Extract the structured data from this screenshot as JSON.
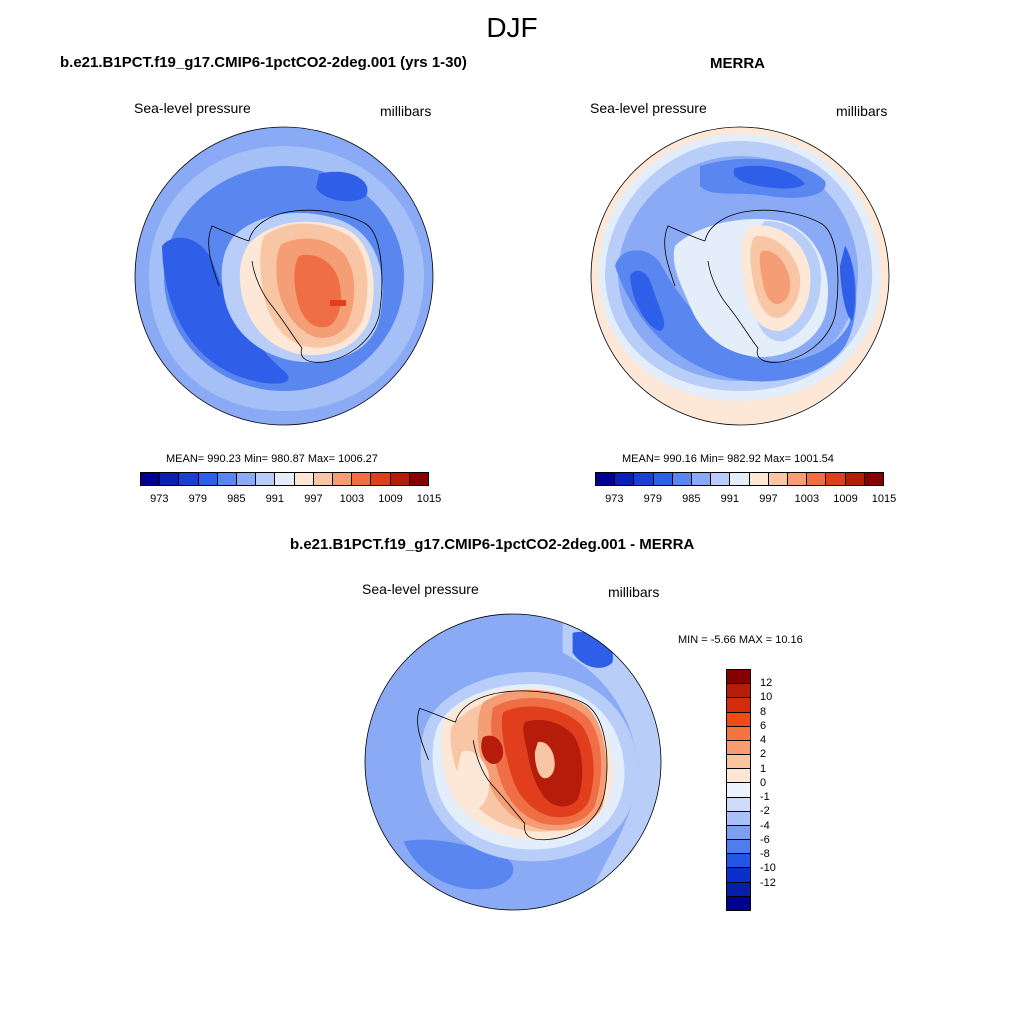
{
  "title": "DJF",
  "panels": [
    {
      "title": "b.e21.B1PCT.f19_g17.CMIP6-1pctCO2-2deg.001 (yrs 1-30)",
      "left_label": "Sea-level pressure",
      "right_label": "millibars",
      "stats": "MEAN= 990.23  Min= 980.87  Max= 1006.27"
    },
    {
      "title": "MERRA",
      "left_label": "Sea-level pressure",
      "right_label": "millibars",
      "stats": "MEAN= 990.16  Min= 982.92  Max= 1001.54"
    },
    {
      "title": "b.e21.B1PCT.f19_g17.CMIP6-1pctCO2-2deg.001 - MERRA",
      "left_label": "Sea-level pressure",
      "right_label": "millibars",
      "stats": "MIN =  -5.66 MAX =  10.16"
    }
  ],
  "colorbar_abs": {
    "ticks": [
      "973",
      "979",
      "985",
      "991",
      "997",
      "1003",
      "1009",
      "1015"
    ],
    "colors": [
      "#00008f",
      "#0a1fb5",
      "#1a3fd6",
      "#2f5fe8",
      "#5a86f0",
      "#8aaaf5",
      "#b8cef8",
      "#e4eefb",
      "#fde8d8",
      "#f9c6a5",
      "#f59d75",
      "#ef6e45",
      "#e03e1c",
      "#b51d0a",
      "#870000"
    ]
  },
  "colorbar_diff": {
    "ticks": [
      "12",
      "10",
      "8",
      "6",
      "4",
      "2",
      "1",
      "0",
      "-1",
      "-2",
      "-4",
      "-6",
      "-8",
      "-10",
      "-12"
    ],
    "colors": [
      "#870000",
      "#b51d0a",
      "#d22c0a",
      "#f04a15",
      "#f5733f",
      "#f89d72",
      "#fbc4a0",
      "#fde6d6",
      "#ecf3fc",
      "#cddcfa",
      "#a8c2f7",
      "#7ba0f2",
      "#4f7ded",
      "#2456e4",
      "#0b2fca",
      "#061fa8",
      "#00008f"
    ]
  },
  "map_colors": {
    "deep_blue": "#2f5fe8",
    "mid_blue": "#5a86f0",
    "light_blue": "#8aaaf5",
    "pale_blue": "#b8cef8",
    "white_blue": "#e4eefb",
    "peach": "#fde8d8",
    "light_orange": "#f9c6a5",
    "orange": "#f59d75",
    "red_orange": "#ef6e45",
    "red": "#e03e1c",
    "dark_red": "#b51d0a"
  }
}
